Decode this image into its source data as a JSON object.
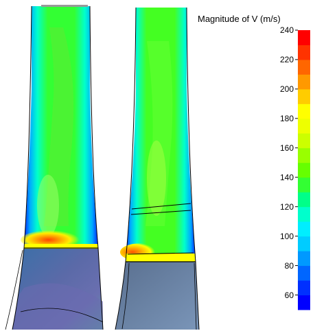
{
  "legend": {
    "title": "Magnitude of V (m/s)",
    "ticks": [
      "240",
      "220",
      "200",
      "180",
      "160",
      "140",
      "120",
      "100",
      "80",
      "60"
    ],
    "range": [
      50,
      240
    ],
    "colors": [
      "#0000ff",
      "#0030ff",
      "#0066ff",
      "#0099ff",
      "#00ccff",
      "#00eeff",
      "#00ffcc",
      "#00ff88",
      "#33ff33",
      "#66ff00",
      "#99ff00",
      "#ccff00",
      "#eeff00",
      "#ffff00",
      "#ffcc00",
      "#ff9900",
      "#ff6600",
      "#ff3300",
      "#ff0000"
    ]
  },
  "panels": [
    "left-contour",
    "right-contour"
  ]
}
